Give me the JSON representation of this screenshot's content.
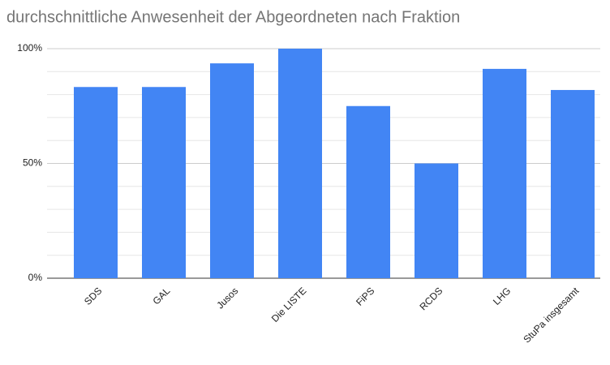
{
  "chart_data": {
    "type": "bar",
    "title": "durchschnittliche Anwesenheit der Abgeordneten nach Fraktion",
    "categories": [
      "SDS",
      "GAL",
      "Jusos",
      "Die LISTE",
      "FiPS",
      "RCDS",
      "LHG",
      "StuPa insgesamt"
    ],
    "values": [
      83.3,
      83.3,
      93.6,
      100,
      75,
      50,
      91.2,
      82
    ],
    "color": "#4285f4",
    "ylim": [
      0,
      100
    ],
    "yticks": [
      {
        "value": 0,
        "label": "0%"
      },
      {
        "value": 50,
        "label": "50%"
      },
      {
        "value": 100,
        "label": "100%"
      }
    ],
    "minor_yticks": [
      10,
      20,
      30,
      40,
      60,
      70,
      80,
      90
    ],
    "grid": true
  }
}
